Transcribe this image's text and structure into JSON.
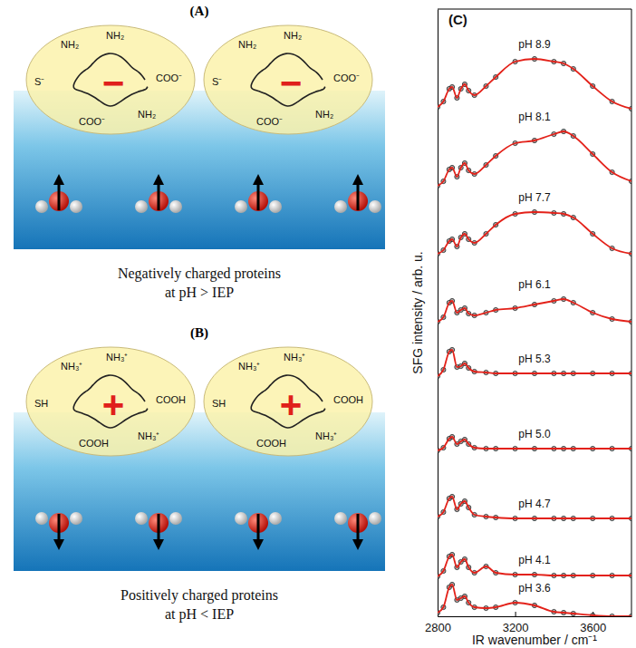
{
  "diagram": {
    "panels": [
      {
        "letter": "(A)",
        "protein_labels": [
          "NH₂",
          "NH₂",
          "COO⁻",
          "S⁻",
          "NH₂",
          "COO⁻"
        ],
        "charge_symbol": "−",
        "caption": [
          "Negatively charged proteins",
          "at pH > IEP"
        ]
      },
      {
        "letter": "(B)",
        "protein_labels": [
          "NH₃⁺",
          "NH₃⁺",
          "COOH",
          "SH",
          "NH₃⁺",
          "COOH"
        ],
        "charge_symbol": "+",
        "caption": [
          "Positively charged proteins",
          "at pH < IEP"
        ]
      }
    ]
  },
  "chart_data": {
    "type": "line",
    "title": "(C)",
    "x_label": "IR wavenumber / cm⁻¹",
    "y_label": "SFG intensity / arb. u.",
    "x": [
      2800,
      2830,
      2860,
      2875,
      2900,
      2920,
      2940,
      2960,
      2990,
      3050,
      3100,
      3200,
      3300,
      3400,
      3450,
      3500,
      3600,
      3700,
      3800
    ],
    "xlim": [
      2800,
      3800
    ],
    "xticks": [
      2800,
      3200,
      3600
    ],
    "ylim": [
      0,
      670
    ],
    "tick_labels": "x",
    "marker": "circle",
    "series": [
      {
        "name": "pH 8.9",
        "color": "#e32119",
        "values": [
          562,
          568,
          582,
          584,
          572,
          582,
          587,
          580,
          575,
          585,
          595,
          612,
          615,
          612,
          610,
          604,
          585,
          568,
          560
        ]
      },
      {
        "name": "pH 8.1",
        "color": "#e32119",
        "values": [
          475,
          480,
          493,
          495,
          485,
          495,
          500,
          492,
          488,
          498,
          508,
          522,
          525,
          532,
          535,
          530,
          510,
          490,
          480
        ]
      },
      {
        "name": "pH 7.7",
        "color": "#e32119",
        "values": [
          400,
          404,
          414,
          416,
          408,
          418,
          422,
          416,
          412,
          422,
          432,
          444,
          446,
          445,
          444,
          440,
          422,
          406,
          400
        ]
      },
      {
        "name": "pH 6.1",
        "color": "#e32119",
        "values": [
          325,
          330,
          346,
          348,
          335,
          338,
          340,
          334,
          332,
          335,
          338,
          340,
          344,
          348,
          350,
          346,
          335,
          328,
          325
        ]
      },
      {
        "name": "pH 5.3",
        "color": "#e32119",
        "values": [
          265,
          272,
          292,
          294,
          275,
          276,
          279,
          274,
          270,
          269,
          268,
          268,
          268,
          268,
          268,
          268,
          268,
          268,
          268
        ]
      },
      {
        "name": "pH 5.0",
        "color": "#e32119",
        "values": [
          183,
          186,
          196,
          198,
          190,
          193,
          195,
          190,
          186,
          185,
          185,
          185,
          185,
          185,
          185,
          185,
          185,
          185,
          185
        ]
      },
      {
        "name": "pH 4.7",
        "color": "#e32119",
        "values": [
          110,
          115,
          130,
          132,
          118,
          124,
          127,
          120,
          112,
          110,
          109,
          108,
          108,
          108,
          108,
          108,
          108,
          108,
          108
        ]
      },
      {
        "name": "pH 4.1",
        "color": "#e32119",
        "values": [
          44,
          50,
          66,
          68,
          54,
          60,
          63,
          54,
          48,
          55,
          48,
          46,
          46,
          45,
          45,
          45,
          45,
          45,
          45
        ]
      },
      {
        "name": "pH 3.6",
        "color": "#e32119",
        "values": [
          4,
          10,
          32,
          35,
          18,
          20,
          22,
          15,
          10,
          9,
          10,
          15,
          12,
          5,
          4,
          3,
          1,
          0,
          0
        ]
      }
    ]
  }
}
